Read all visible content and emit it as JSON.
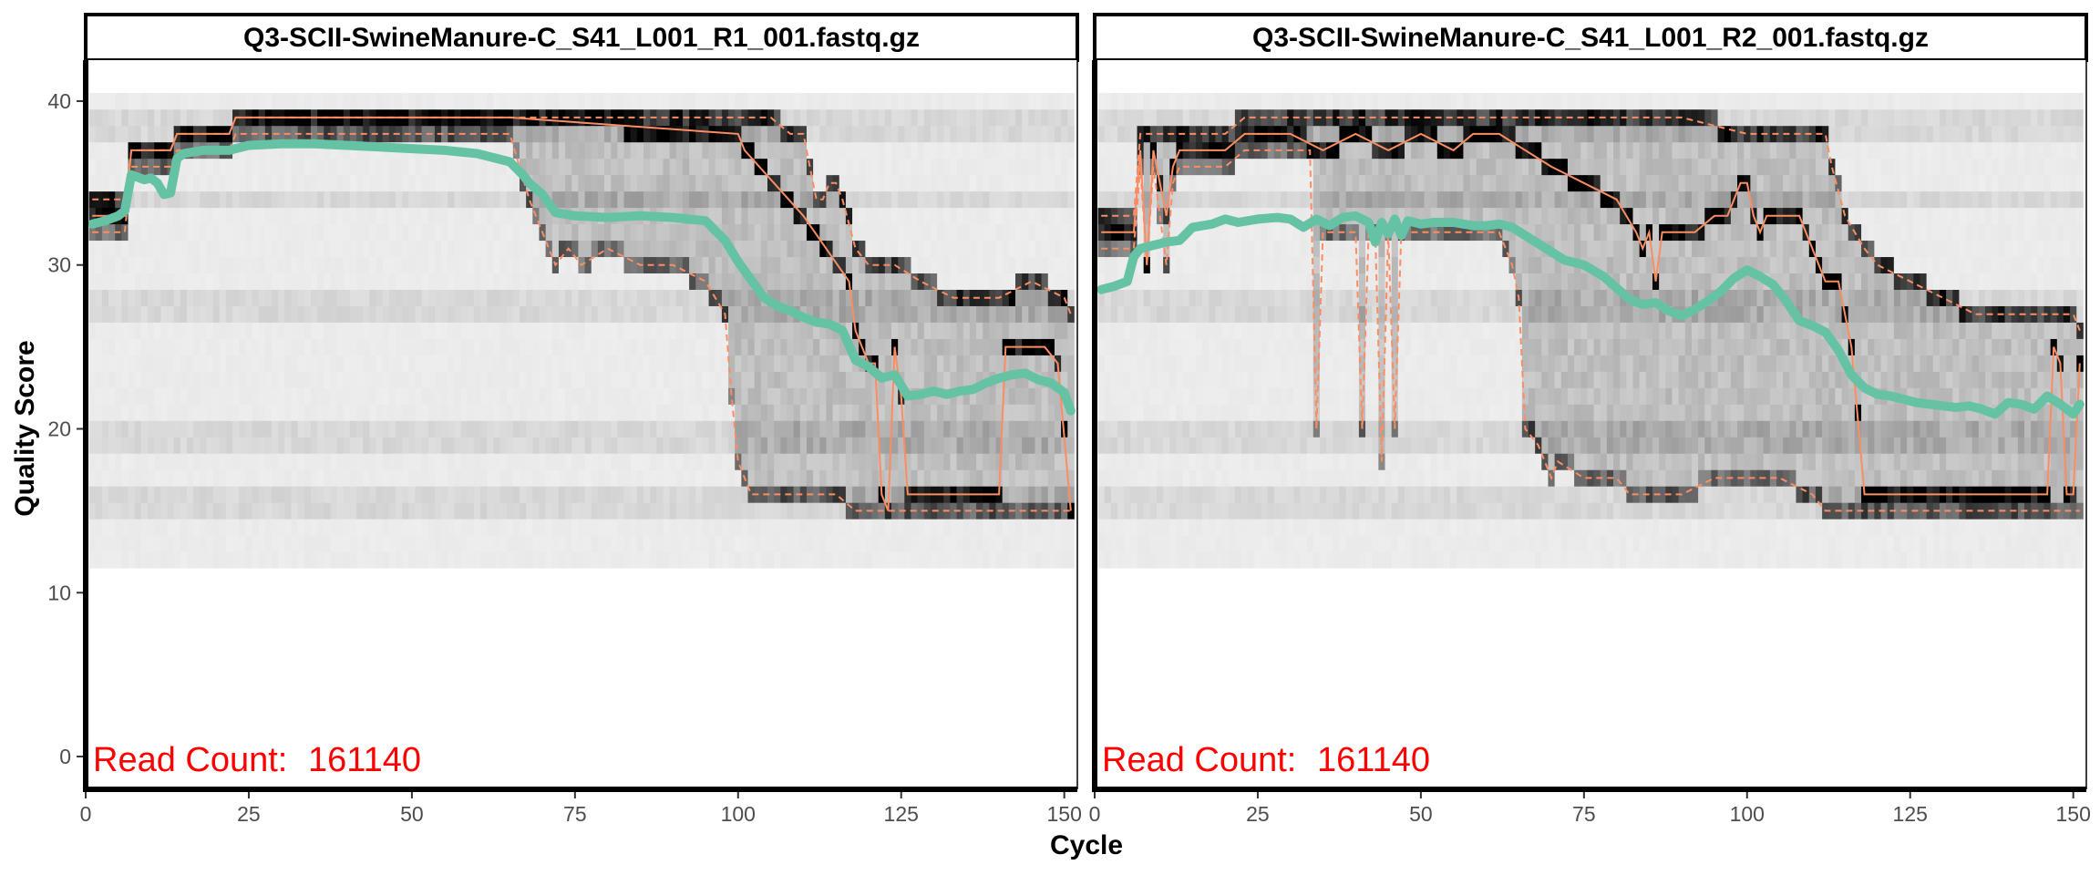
{
  "chart_data": {
    "type": "heatmap",
    "xlabel": "Cycle",
    "ylabel": "Quality Score",
    "xlim": [
      0,
      152
    ],
    "ylim": [
      -2,
      42.5
    ],
    "x_ticks": [
      0,
      25,
      50,
      75,
      100,
      125,
      150
    ],
    "y_ticks": [
      0,
      10,
      20,
      30,
      40
    ],
    "colors": {
      "mean": "#66c2a5",
      "quantile": "#fc8d62",
      "count_text": "#ff0000",
      "tile_dark": "#000000"
    },
    "panels": [
      {
        "title": "Q3-SCII-SwineManure-C_S41_L001_R1_001.fastq.gz",
        "read_count_label": "Read Count:",
        "read_count_value": "161140",
        "mean": {
          "x": [
            1,
            3,
            5,
            6,
            7,
            9,
            10,
            11,
            12,
            13,
            14,
            15,
            18,
            22,
            25,
            30,
            35,
            40,
            45,
            50,
            55,
            60,
            63,
            65,
            67,
            68,
            70,
            72,
            75,
            80,
            85,
            90,
            95,
            98,
            100,
            102,
            104,
            106,
            108,
            110,
            112,
            114,
            116,
            118,
            120,
            122,
            124,
            126,
            128,
            130,
            132,
            134,
            136,
            138,
            140,
            142,
            144,
            146,
            148,
            150,
            151
          ],
          "y": [
            32.5,
            32.7,
            33.0,
            33.3,
            35.5,
            35.2,
            35.3,
            35.0,
            34.3,
            34.4,
            36.5,
            36.8,
            37.0,
            37.0,
            37.3,
            37.4,
            37.4,
            37.3,
            37.2,
            37.1,
            37.0,
            36.8,
            36.5,
            36.3,
            35.5,
            35.0,
            34.3,
            33.2,
            33.0,
            32.9,
            33.0,
            32.9,
            32.7,
            31.5,
            30.2,
            29.1,
            28.0,
            27.5,
            27.2,
            26.8,
            26.5,
            26.4,
            26.0,
            24.2,
            23.8,
            23.1,
            23.3,
            22.0,
            22.1,
            22.3,
            22.1,
            22.3,
            22.4,
            22.8,
            23.1,
            23.3,
            23.4,
            23.0,
            22.8,
            22.2,
            21.1
          ]
        },
        "median": {
          "x": [
            1,
            3,
            5,
            6,
            7,
            12,
            13,
            14,
            22,
            23,
            30,
            50,
            60,
            65,
            100,
            101,
            110,
            117,
            118,
            120,
            121,
            122,
            123,
            124,
            125,
            126,
            127,
            128,
            135,
            138,
            140,
            141,
            144,
            147,
            149,
            151
          ],
          "y": [
            33,
            33,
            33,
            33,
            37,
            37,
            37,
            38,
            38,
            39,
            39,
            39,
            39,
            39,
            38,
            37,
            33,
            29,
            26,
            24,
            24,
            16,
            15,
            25,
            22,
            16,
            16,
            16,
            16,
            16,
            16,
            25,
            25,
            25,
            24,
            15
          ]
        },
        "q25": {
          "x": [
            1,
            3,
            5,
            6,
            7,
            12,
            13,
            14,
            22,
            23,
            30,
            65,
            68,
            70,
            72,
            74,
            76,
            80,
            85,
            90,
            95,
            98,
            99,
            100,
            102,
            110,
            115,
            118,
            120,
            125,
            130,
            140,
            145,
            150,
            151
          ],
          "y": [
            32,
            32,
            32,
            32,
            36,
            36,
            36,
            37,
            37,
            38,
            38,
            38,
            34,
            32,
            30,
            31,
            30,
            31,
            30,
            30,
            29,
            27,
            22,
            18,
            16,
            16,
            16,
            15,
            15,
            15,
            15,
            15,
            15,
            15,
            15
          ]
        },
        "q75": {
          "x": [
            1,
            5,
            6,
            7,
            13,
            14,
            22,
            23,
            30,
            90,
            100,
            105,
            108,
            110,
            111,
            112,
            113,
            114,
            115,
            116,
            118,
            120,
            124,
            128,
            133,
            140,
            145,
            150,
            151
          ],
          "y": [
            34,
            34,
            34,
            37,
            37,
            38,
            38,
            39,
            39,
            39,
            39,
            39,
            38,
            38,
            36,
            34,
            34,
            35,
            35,
            34,
            31,
            30,
            30,
            29,
            28,
            28,
            29,
            28,
            27
          ]
        }
      },
      {
        "title": "Q3-SCII-SwineManure-C_S41_L001_R2_001.fastq.gz",
        "read_count_label": "Read Count:",
        "read_count_value": "161140",
        "mean": {
          "x": [
            1,
            3,
            5,
            6,
            7,
            9,
            11,
            13,
            15,
            18,
            20,
            22,
            25,
            28,
            30,
            32,
            34,
            36,
            38,
            40,
            42,
            43,
            44,
            45,
            46,
            47,
            48,
            50,
            52,
            55,
            58,
            60,
            62,
            64,
            66,
            68,
            70,
            72,
            75,
            78,
            80,
            82,
            84,
            86,
            88,
            90,
            92,
            94,
            96,
            98,
            100,
            102,
            104,
            106,
            108,
            110,
            112,
            114,
            116,
            118,
            120,
            122,
            124,
            126,
            128,
            130,
            132,
            134,
            136,
            138,
            140,
            142,
            144,
            146,
            148,
            150,
            151
          ],
          "y": [
            28.5,
            28.7,
            29.0,
            30.5,
            31.0,
            31.2,
            31.4,
            31.5,
            32.3,
            32.5,
            32.8,
            32.6,
            32.8,
            32.9,
            32.8,
            32.3,
            32.8,
            32.4,
            32.9,
            33.0,
            32.6,
            31.4,
            32.6,
            31.9,
            32.8,
            31.8,
            32.7,
            32.5,
            32.6,
            32.6,
            32.4,
            32.4,
            32.5,
            32.3,
            31.8,
            31.3,
            30.8,
            30.3,
            30.0,
            29.3,
            28.6,
            27.9,
            27.6,
            27.7,
            27.2,
            26.9,
            27.3,
            27.8,
            28.4,
            29.2,
            29.7,
            29.3,
            28.8,
            27.8,
            26.6,
            26.3,
            25.9,
            24.8,
            23.3,
            22.5,
            22.1,
            22.0,
            21.8,
            21.6,
            21.5,
            21.4,
            21.3,
            21.4,
            21.2,
            20.9,
            21.6,
            21.5,
            21.2,
            22.0,
            21.5,
            20.9,
            21.5
          ]
        },
        "median": {
          "x": [
            1,
            3,
            5,
            6,
            7,
            8,
            9,
            10,
            11,
            12,
            13,
            14,
            20,
            23,
            25,
            30,
            35,
            40,
            45,
            50,
            55,
            58,
            60,
            62,
            70,
            80,
            83,
            84,
            85,
            86,
            87,
            88,
            92,
            95,
            97,
            98,
            99,
            100,
            101,
            102,
            103,
            105,
            108,
            110,
            112,
            114,
            116,
            118,
            120,
            125,
            130,
            140,
            145,
            146,
            147,
            148,
            149,
            150,
            151
          ],
          "y": [
            32,
            32,
            32,
            32,
            37,
            30,
            37,
            35,
            33,
            36,
            37,
            37,
            37,
            38,
            38,
            38,
            37,
            38,
            37,
            38,
            37,
            38,
            38,
            38,
            36,
            34,
            32,
            31,
            32,
            29,
            32,
            32,
            32,
            33,
            33,
            34,
            35,
            35,
            33,
            32,
            33,
            33,
            33,
            31,
            29,
            29,
            25,
            16,
            16,
            16,
            16,
            16,
            16,
            16,
            25,
            24,
            16,
            16,
            24
          ]
        },
        "q25": {
          "x": [
            1,
            3,
            5,
            6,
            7,
            8,
            9,
            10,
            11,
            12,
            13,
            14,
            20,
            23,
            30,
            33,
            34,
            35,
            40,
            41,
            42,
            43,
            44,
            45,
            46,
            47,
            48,
            50,
            55,
            60,
            62,
            63,
            64,
            65,
            66,
            68,
            70,
            71,
            75,
            80,
            82,
            85,
            90,
            95,
            100,
            105,
            110,
            112,
            115,
            120,
            125,
            130,
            140,
            145,
            150,
            151
          ],
          "y": [
            31,
            31,
            31,
            31,
            36,
            30,
            36,
            33,
            30,
            35,
            36,
            36,
            36,
            37,
            37,
            37,
            20,
            32,
            32,
            20,
            32,
            32,
            18,
            32,
            20,
            32,
            32,
            32,
            32,
            32,
            32,
            31,
            30,
            28,
            20,
            19,
            17,
            18,
            17,
            17,
            16,
            16,
            16,
            17,
            17,
            17,
            16,
            15,
            15,
            15,
            15,
            15,
            15,
            15,
            15,
            15
          ]
        },
        "q75": {
          "x": [
            1,
            5,
            6,
            7,
            13,
            14,
            20,
            23,
            30,
            90,
            100,
            105,
            112,
            113,
            115,
            118,
            120,
            125,
            130,
            135,
            140,
            145,
            150,
            151
          ],
          "y": [
            33,
            33,
            33,
            38,
            38,
            38,
            38,
            39,
            39,
            39,
            38,
            38,
            38,
            36,
            33,
            31,
            30,
            29,
            28,
            27,
            27,
            27,
            27,
            26
          ]
        }
      }
    ]
  }
}
